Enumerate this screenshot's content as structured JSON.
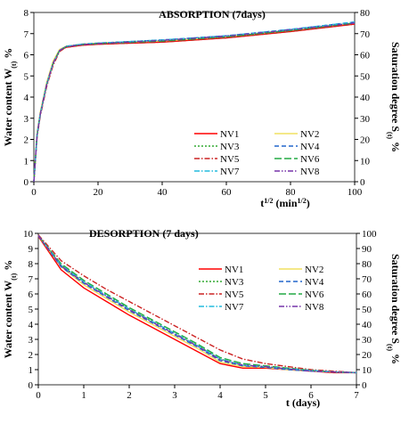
{
  "chart_data": [
    {
      "type": "line",
      "title": "ABSORPTION (7days)",
      "x_label": [
        {
          "text": "t"
        },
        {
          "text": "1/2",
          "sup": true
        },
        {
          "text": "  (min"
        },
        {
          "text": "1/2",
          "sup": true
        },
        {
          "text": ")"
        }
      ],
      "y_label": [
        {
          "text": "Water content W"
        },
        {
          "text": "(t)",
          "sub": true
        },
        {
          "text": " %"
        }
      ],
      "y2_label": [
        {
          "text": "Saturation degree S"
        },
        {
          "text": "(t)",
          "sub": true
        },
        {
          "text": " %"
        }
      ],
      "x": [
        0,
        1,
        2,
        4,
        6,
        8,
        10,
        15,
        20,
        40,
        60,
        80,
        100
      ],
      "xlim": [
        0,
        100
      ],
      "xticks": [
        0,
        20,
        40,
        60,
        80,
        100
      ],
      "ylim": [
        0,
        8
      ],
      "yticks": [
        0,
        1,
        2,
        3,
        4,
        5,
        6,
        7,
        8
      ],
      "y2lim": [
        0,
        80
      ],
      "y2ticks": [
        0,
        10,
        20,
        30,
        40,
        50,
        60,
        70,
        80
      ],
      "series": [
        {
          "name": "NV1",
          "color": "#ff0000",
          "dash": "solid",
          "values": [
            0,
            2.2,
            3.2,
            4.6,
            5.6,
            6.2,
            6.35,
            6.45,
            6.5,
            6.6,
            6.8,
            7.1,
            7.45
          ]
        },
        {
          "name": "NV2",
          "color": "#f0e060",
          "dash": "solid",
          "values": [
            0,
            2.3,
            3.3,
            4.7,
            5.7,
            6.25,
            6.4,
            6.5,
            6.55,
            6.65,
            6.85,
            7.15,
            7.5
          ]
        },
        {
          "name": "NV3",
          "color": "#33aa33",
          "dash": "dot",
          "values": [
            0,
            2.2,
            3.2,
            4.6,
            5.6,
            6.2,
            6.38,
            6.5,
            6.55,
            6.7,
            6.85,
            7.15,
            7.5
          ]
        },
        {
          "name": "NV4",
          "color": "#2266cc",
          "dash": "dash",
          "values": [
            0,
            2.2,
            3.2,
            4.6,
            5.6,
            6.2,
            6.4,
            6.5,
            6.55,
            6.7,
            6.9,
            7.2,
            7.55
          ]
        },
        {
          "name": "NV5",
          "color": "#cc2222",
          "dash": "dashdot",
          "values": [
            0,
            2.1,
            3.1,
            4.5,
            5.5,
            6.15,
            6.35,
            6.45,
            6.5,
            6.6,
            6.8,
            7.1,
            7.45
          ]
        },
        {
          "name": "NV6",
          "color": "#22aa44",
          "dash": "longdash",
          "values": [
            0,
            2.2,
            3.2,
            4.6,
            5.6,
            6.2,
            6.38,
            6.48,
            6.53,
            6.65,
            6.85,
            7.15,
            7.5
          ]
        },
        {
          "name": "NV7",
          "color": "#22bbdd",
          "dash": "dashdot",
          "values": [
            0,
            2.2,
            3.2,
            4.6,
            5.6,
            6.2,
            6.4,
            6.5,
            6.55,
            6.7,
            6.9,
            7.2,
            7.55
          ]
        },
        {
          "name": "NV8",
          "color": "#7733aa",
          "dash": "dashdotdot",
          "values": [
            0,
            2.2,
            3.2,
            4.6,
            5.6,
            6.2,
            6.38,
            6.48,
            6.53,
            6.68,
            6.88,
            7.18,
            7.5
          ]
        }
      ]
    },
    {
      "type": "line",
      "title": "DESORPTION (7 days)",
      "x_label": [
        {
          "text": "t (days)"
        }
      ],
      "y_label": [
        {
          "text": "Water content W"
        },
        {
          "text": "(t)",
          "sub": true
        },
        {
          "text": " %"
        }
      ],
      "y2_label": [
        {
          "text": "Saturation degree S"
        },
        {
          "text": "(t)",
          "sub": true
        },
        {
          "text": " %"
        }
      ],
      "x": [
        0,
        0.5,
        1,
        1.5,
        2,
        2.5,
        3,
        3.5,
        4,
        4.5,
        5,
        5.5,
        6,
        6.5,
        7
      ],
      "xlim": [
        0,
        7
      ],
      "xticks": [
        0,
        1,
        2,
        3,
        4,
        5,
        6,
        7
      ],
      "ylim": [
        0,
        10
      ],
      "yticks": [
        0,
        1,
        2,
        3,
        4,
        5,
        6,
        7,
        8,
        9,
        10
      ],
      "y2lim": [
        0,
        100
      ],
      "y2ticks": [
        0,
        10,
        20,
        30,
        40,
        50,
        60,
        70,
        80,
        90,
        100
      ],
      "series": [
        {
          "name": "NV1",
          "color": "#ff0000",
          "dash": "solid",
          "values": [
            9.8,
            7.6,
            6.4,
            5.5,
            4.6,
            3.8,
            3.0,
            2.2,
            1.4,
            1.1,
            1.1,
            1.0,
            0.9,
            0.8,
            0.8
          ]
        },
        {
          "name": "NV2",
          "color": "#f0e060",
          "dash": "solid",
          "values": [
            9.85,
            7.8,
            6.6,
            5.7,
            4.8,
            4.0,
            3.2,
            2.4,
            1.5,
            1.2,
            1.15,
            1.0,
            0.9,
            0.85,
            0.8
          ]
        },
        {
          "name": "NV3",
          "color": "#33aa33",
          "dash": "dot",
          "values": [
            9.85,
            7.9,
            6.8,
            5.9,
            5.0,
            4.2,
            3.4,
            2.6,
            1.7,
            1.3,
            1.2,
            1.05,
            0.95,
            0.85,
            0.8
          ]
        },
        {
          "name": "NV4",
          "color": "#2266cc",
          "dash": "dash",
          "values": [
            9.85,
            7.8,
            6.7,
            5.8,
            4.9,
            4.1,
            3.3,
            2.5,
            1.6,
            1.25,
            1.15,
            1.0,
            0.9,
            0.85,
            0.8
          ]
        },
        {
          "name": "NV5",
          "color": "#cc2222",
          "dash": "dashdot",
          "values": [
            9.9,
            8.2,
            7.2,
            6.3,
            5.5,
            4.7,
            3.9,
            3.1,
            2.3,
            1.7,
            1.4,
            1.2,
            1.0,
            0.9,
            0.8
          ]
        },
        {
          "name": "NV6",
          "color": "#22aa44",
          "dash": "longdash",
          "values": [
            9.85,
            8.0,
            6.9,
            6.0,
            5.1,
            4.3,
            3.5,
            2.7,
            1.8,
            1.4,
            1.25,
            1.1,
            0.95,
            0.85,
            0.8
          ]
        },
        {
          "name": "NV7",
          "color": "#22bbdd",
          "dash": "dashdot",
          "values": [
            9.85,
            7.9,
            6.8,
            5.9,
            5.0,
            4.2,
            3.4,
            2.6,
            1.7,
            1.3,
            1.2,
            1.05,
            0.95,
            0.85,
            0.8
          ]
        },
        {
          "name": "NV8",
          "color": "#7733aa",
          "dash": "dashdotdot",
          "values": [
            9.85,
            7.85,
            6.75,
            5.85,
            4.95,
            4.15,
            3.35,
            2.55,
            1.65,
            1.3,
            1.2,
            1.05,
            0.9,
            0.85,
            0.8
          ]
        }
      ]
    }
  ]
}
